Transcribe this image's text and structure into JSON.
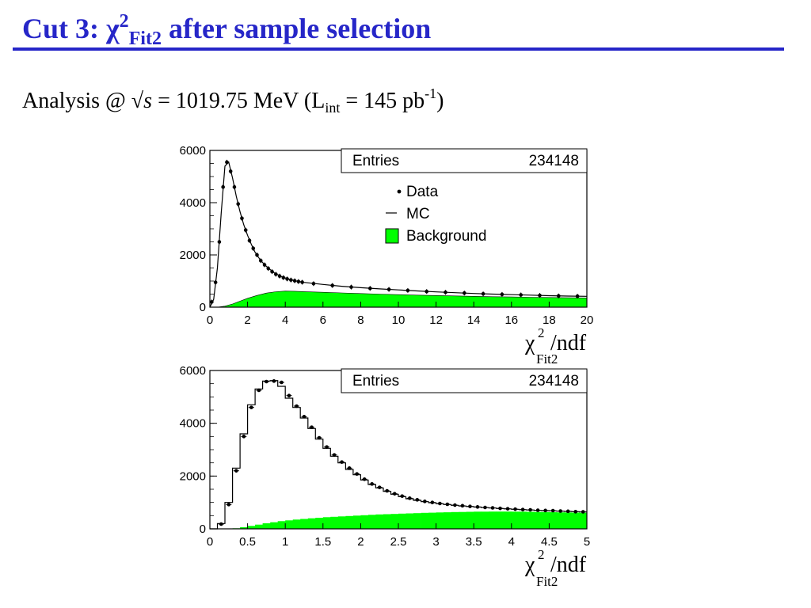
{
  "slide": {
    "title": {
      "prefix": "Cut 3: ",
      "chi": "χ",
      "sup": "2",
      "sub": "Fit2",
      "suffix": " after sample selection"
    },
    "subtitle": {
      "pre": "Analysis @ √",
      "s": "s",
      "mid": " = 1019.75 MeV (L",
      "sub": "int",
      "post": " = 145 pb",
      "sup": "-1",
      "close": ")"
    }
  },
  "colors": {
    "title": "#2626c8",
    "background_fill": "#00ff00",
    "data": "#000000",
    "mc": "#000000"
  },
  "chart_data": [
    {
      "type": "histogram",
      "xlabel": {
        "chi": "χ",
        "sup": "2",
        "slash": "/ndf",
        "sub": "Fit2"
      },
      "xlim": [
        0,
        20
      ],
      "ylim": [
        0,
        6000
      ],
      "xticks": [
        "0",
        "2",
        "4",
        "6",
        "8",
        "10",
        "12",
        "14",
        "16",
        "18",
        "20"
      ],
      "xtick_values": [
        0,
        2,
        4,
        6,
        8,
        10,
        12,
        14,
        16,
        18,
        20
      ],
      "yticks": [
        "0",
        "2000",
        "4000",
        "6000"
      ],
      "ytick_values": [
        0,
        2000,
        4000,
        6000
      ],
      "stats": {
        "label": "Entries",
        "value": "234148"
      },
      "legend": {
        "placement": "top-right",
        "entries": [
          "Data",
          "MC",
          "Background"
        ]
      },
      "data_points": [
        [
          0.1,
          200
        ],
        [
          0.3,
          950
        ],
        [
          0.5,
          2500
        ],
        [
          0.7,
          4600
        ],
        [
          0.9,
          5550
        ],
        [
          1.1,
          5200
        ],
        [
          1.3,
          4600
        ],
        [
          1.5,
          3950
        ],
        [
          1.7,
          3400
        ],
        [
          1.9,
          2950
        ],
        [
          2.1,
          2550
        ],
        [
          2.3,
          2250
        ],
        [
          2.5,
          2000
        ],
        [
          2.7,
          1780
        ],
        [
          2.9,
          1620
        ],
        [
          3.1,
          1480
        ],
        [
          3.3,
          1360
        ],
        [
          3.5,
          1260
        ],
        [
          3.7,
          1190
        ],
        [
          3.9,
          1130
        ],
        [
          4.1,
          1080
        ],
        [
          4.3,
          1040
        ],
        [
          4.5,
          1010
        ],
        [
          4.7,
          980
        ],
        [
          4.9,
          955
        ],
        [
          5.5,
          900
        ],
        [
          6.5,
          830
        ],
        [
          7.5,
          770
        ],
        [
          8.5,
          720
        ],
        [
          9.5,
          680
        ],
        [
          10.5,
          640
        ],
        [
          11.5,
          600
        ],
        [
          12.5,
          570
        ],
        [
          13.5,
          540
        ],
        [
          14.5,
          510
        ],
        [
          15.5,
          490
        ],
        [
          16.5,
          470
        ],
        [
          17.5,
          450
        ],
        [
          18.5,
          430
        ],
        [
          19.5,
          420
        ]
      ],
      "mc_points": [
        [
          0,
          0
        ],
        [
          0.2,
          300
        ],
        [
          0.4,
          1500
        ],
        [
          0.6,
          3600
        ],
        [
          0.8,
          5400
        ],
        [
          1.0,
          5550
        ],
        [
          1.2,
          4950
        ],
        [
          1.4,
          4250
        ],
        [
          1.6,
          3650
        ],
        [
          1.8,
          3150
        ],
        [
          2.0,
          2750
        ],
        [
          2.2,
          2400
        ],
        [
          2.4,
          2100
        ],
        [
          2.7,
          1780
        ],
        [
          3.0,
          1560
        ],
        [
          3.4,
          1320
        ],
        [
          3.8,
          1170
        ],
        [
          4.2,
          1070
        ],
        [
          4.6,
          1000
        ],
        [
          5.0,
          950
        ],
        [
          6.0,
          870
        ],
        [
          7.0,
          800
        ],
        [
          8.0,
          745
        ],
        [
          9.0,
          700
        ],
        [
          10.0,
          660
        ],
        [
          11.0,
          620
        ],
        [
          12.0,
          585
        ],
        [
          13.0,
          555
        ],
        [
          14.0,
          525
        ],
        [
          15.0,
          500
        ],
        [
          16.0,
          480
        ],
        [
          17.0,
          460
        ],
        [
          18.0,
          440
        ],
        [
          19.0,
          425
        ],
        [
          20.0,
          415
        ]
      ],
      "background_points": [
        [
          0.4,
          0
        ],
        [
          0.8,
          40
        ],
        [
          1.2,
          120
        ],
        [
          1.6,
          230
        ],
        [
          2.0,
          340
        ],
        [
          2.5,
          450
        ],
        [
          3.0,
          540
        ],
        [
          3.5,
          590
        ],
        [
          4.0,
          615
        ],
        [
          4.5,
          610
        ],
        [
          5.0,
          595
        ],
        [
          6.0,
          570
        ],
        [
          7.0,
          545
        ],
        [
          8.0,
          520
        ],
        [
          9.0,
          500
        ],
        [
          10.0,
          480
        ],
        [
          11.0,
          460
        ],
        [
          12.0,
          445
        ],
        [
          13.0,
          430
        ],
        [
          14.0,
          415
        ],
        [
          15.0,
          400
        ],
        [
          16.0,
          390
        ],
        [
          17.0,
          380
        ],
        [
          18.0,
          370
        ],
        [
          19.0,
          360
        ],
        [
          20.0,
          355
        ]
      ]
    },
    {
      "type": "histogram",
      "xlabel": {
        "chi": "χ",
        "sup": "2",
        "slash": "/ndf",
        "sub": "Fit2"
      },
      "xlim": [
        0,
        5
      ],
      "ylim": [
        0,
        6000
      ],
      "xticks": [
        "0",
        "0.5",
        "1",
        "1.5",
        "2",
        "2.5",
        "3",
        "3.5",
        "4",
        "4.5",
        "5"
      ],
      "xtick_values": [
        0,
        0.5,
        1,
        1.5,
        2,
        2.5,
        3,
        3.5,
        4,
        4.5,
        5
      ],
      "yticks": [
        "0",
        "2000",
        "4000",
        "6000"
      ],
      "ytick_values": [
        0,
        2000,
        4000,
        6000
      ],
      "stats": {
        "label": "Entries",
        "value": "234148"
      },
      "bin_edges": [
        0,
        0.1,
        0.2,
        0.3,
        0.4,
        0.5,
        0.6,
        0.7,
        0.8,
        0.9,
        1.0,
        1.1,
        1.2,
        1.3,
        1.4,
        1.5,
        1.6,
        1.7,
        1.8,
        1.9,
        2.0,
        2.1,
        2.2,
        2.3,
        2.4,
        2.5,
        2.6,
        2.7,
        2.8,
        2.9,
        3.0,
        3.1,
        3.2,
        3.3,
        3.4,
        3.5,
        3.6,
        3.7,
        3.8,
        3.9,
        4.0,
        4.1,
        4.2,
        4.3,
        4.4,
        4.5,
        4.6,
        4.7,
        4.8,
        4.9,
        5.0
      ],
      "mc_values": [
        0,
        200,
        1000,
        2300,
        3600,
        4700,
        5300,
        5600,
        5620,
        5400,
        4950,
        4600,
        4200,
        3800,
        3400,
        3050,
        2750,
        2500,
        2250,
        2050,
        1850,
        1680,
        1550,
        1420,
        1310,
        1220,
        1140,
        1080,
        1030,
        990,
        950,
        920,
        890,
        865,
        845,
        825,
        805,
        790,
        770,
        755,
        740,
        725,
        715,
        700,
        690,
        680,
        670,
        660,
        650,
        640
      ],
      "data_values": [
        0,
        180,
        920,
        2200,
        3500,
        4600,
        5250,
        5580,
        5600,
        5550,
        5050,
        4650,
        4250,
        3850,
        3450,
        3100,
        2800,
        2530,
        2300,
        2080,
        1880,
        1700,
        1570,
        1440,
        1330,
        1240,
        1160,
        1100,
        1040,
        1000,
        960,
        930,
        900,
        875,
        850,
        830,
        810,
        795,
        775,
        760,
        745,
        730,
        720,
        705,
        695,
        690,
        675,
        665,
        650,
        645
      ],
      "background_values": [
        0,
        0,
        0,
        20,
        60,
        110,
        160,
        210,
        250,
        290,
        320,
        350,
        375,
        400,
        420,
        440,
        455,
        470,
        485,
        500,
        515,
        530,
        545,
        555,
        565,
        575,
        585,
        595,
        605,
        612,
        620,
        628,
        635,
        640,
        645,
        650,
        652,
        655,
        655,
        655,
        652,
        650,
        645,
        640,
        635,
        630,
        625,
        620,
        615,
        610
      ]
    }
  ]
}
